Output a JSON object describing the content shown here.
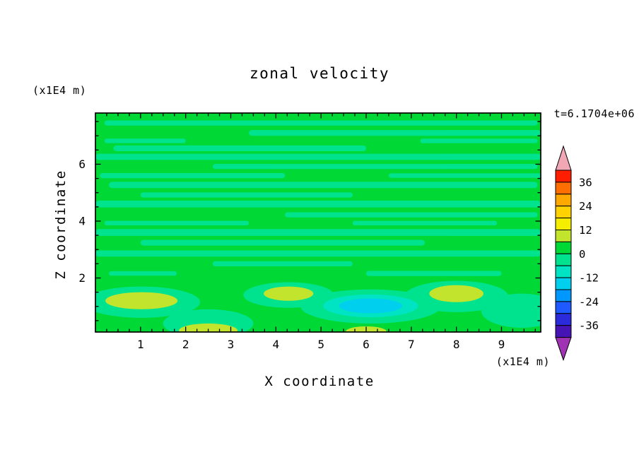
{
  "chart_data": {
    "type": "heatmap",
    "title": "zonal velocity",
    "time_label": "t=6.1704e+06",
    "xlabel": "X coordinate",
    "ylabel": "Z coordinate",
    "x_axis_unit": "(x1E4 m)",
    "y_axis_unit": "(x1E4 m)",
    "xlim": [
      0,
      9.87
    ],
    "ylim": [
      0.1,
      7.8
    ],
    "x_major_ticks": [
      1,
      2,
      3,
      4,
      5,
      6,
      7,
      8,
      9
    ],
    "x_minor_step": 0.25,
    "y_major_ticks": [
      2,
      4,
      6
    ],
    "y_minor_step": 0.5,
    "grid": false,
    "legend_position": "right-colorbar",
    "colorbar": {
      "tick_labels": [
        36,
        24,
        12,
        0,
        -12,
        -24,
        -36
      ],
      "level_max": 42,
      "level_step": 6,
      "segment_colors_top_to_bottom": [
        "#FF1E00",
        "#FF6E00",
        "#FFA800",
        "#FFD200",
        "#F5EE00",
        "#C3E42D",
        "#00D836",
        "#00E38E",
        "#00E4C3",
        "#00CFEE",
        "#0098FF",
        "#1E5AFF",
        "#2B2BDC",
        "#4614B4"
      ],
      "over_arrow_color": "#F2A7B4",
      "under_arrow_color": "#A032B4"
    },
    "field": {
      "description": "Zonal velocity contour field: mostly near-zero (green 0..6 band) with thin horizontal streaks of the -6..0 band throughout; weak positive anomalies (6..12, yellow-green) near the bottom boundary at x~1, 2.5, 4.3, 6 and 8, and a weak negative anomaly (cyan, about -12) near x~6, z~1.",
      "base_color": "#00D836",
      "streak_color": "#00E38E",
      "streaks": [
        {
          "x0": 0.2,
          "x1": 9.8,
          "z": 7.45,
          "dz": 0.18
        },
        {
          "x0": 3.4,
          "x1": 9.87,
          "z": 7.1,
          "dz": 0.2
        },
        {
          "x0": 0.2,
          "x1": 2.0,
          "z": 6.82,
          "dz": 0.16
        },
        {
          "x0": 7.2,
          "x1": 9.8,
          "z": 6.82,
          "dz": 0.16
        },
        {
          "x0": 0.4,
          "x1": 6.0,
          "z": 6.56,
          "dz": 0.2
        },
        {
          "x0": 0.0,
          "x1": 9.87,
          "z": 6.26,
          "dz": 0.22
        },
        {
          "x0": 2.6,
          "x1": 9.8,
          "z": 5.92,
          "dz": 0.18
        },
        {
          "x0": 0.1,
          "x1": 4.2,
          "z": 5.6,
          "dz": 0.18
        },
        {
          "x0": 6.5,
          "x1": 9.87,
          "z": 5.6,
          "dz": 0.16
        },
        {
          "x0": 0.3,
          "x1": 9.8,
          "z": 5.27,
          "dz": 0.22
        },
        {
          "x0": 1.0,
          "x1": 5.7,
          "z": 4.92,
          "dz": 0.18
        },
        {
          "x0": 0.0,
          "x1": 9.87,
          "z": 4.6,
          "dz": 0.24
        },
        {
          "x0": 4.2,
          "x1": 9.8,
          "z": 4.22,
          "dz": 0.18
        },
        {
          "x0": 0.2,
          "x1": 3.4,
          "z": 3.93,
          "dz": 0.16
        },
        {
          "x0": 5.7,
          "x1": 8.9,
          "z": 3.93,
          "dz": 0.16
        },
        {
          "x0": 0.0,
          "x1": 9.87,
          "z": 3.6,
          "dz": 0.24
        },
        {
          "x0": 1.0,
          "x1": 7.3,
          "z": 3.24,
          "dz": 0.2
        },
        {
          "x0": 0.0,
          "x1": 9.87,
          "z": 2.86,
          "dz": 0.22
        },
        {
          "x0": 2.6,
          "x1": 5.7,
          "z": 2.5,
          "dz": 0.18
        },
        {
          "x0": 0.3,
          "x1": 1.8,
          "z": 2.16,
          "dz": 0.16
        },
        {
          "x0": 6.0,
          "x1": 9.0,
          "z": 2.16,
          "dz": 0.18
        }
      ],
      "blobs": [
        {
          "x": 1.02,
          "z": 1.15,
          "rx": 1.3,
          "rz": 0.55,
          "color": "#00E38E"
        },
        {
          "x": 2.5,
          "z": 0.4,
          "rx": 1.0,
          "rz": 0.5,
          "color": "#00E38E"
        },
        {
          "x": 4.28,
          "z": 1.4,
          "rx": 1.0,
          "rz": 0.45,
          "color": "#00E38E"
        },
        {
          "x": 8.0,
          "z": 1.35,
          "rx": 1.15,
          "rz": 0.55,
          "color": "#00E38E"
        },
        {
          "x": 9.45,
          "z": 0.85,
          "rx": 0.9,
          "rz": 0.6,
          "color": "#00E38E"
        },
        {
          "x": 6.1,
          "z": 1.0,
          "rx": 1.55,
          "rz": 0.6,
          "color": "#00E38E"
        },
        {
          "x": 6.1,
          "z": 1.02,
          "rx": 1.05,
          "rz": 0.4,
          "color": "#00E4C3"
        },
        {
          "x": 6.1,
          "z": 1.02,
          "rx": 0.7,
          "rz": 0.26,
          "color": "#00CFEE"
        },
        {
          "x": 1.02,
          "z": 1.2,
          "rx": 0.8,
          "rz": 0.3,
          "color": "#C3E42D"
        },
        {
          "x": 2.5,
          "z": 0.15,
          "rx": 0.65,
          "rz": 0.25,
          "color": "#C3E42D"
        },
        {
          "x": 4.28,
          "z": 1.45,
          "rx": 0.55,
          "rz": 0.25,
          "color": "#C3E42D"
        },
        {
          "x": 6.0,
          "z": 0.12,
          "rx": 0.45,
          "rz": 0.18,
          "color": "#C3E42D"
        },
        {
          "x": 8.0,
          "z": 1.45,
          "rx": 0.6,
          "rz": 0.3,
          "color": "#C3E42D"
        }
      ]
    }
  }
}
